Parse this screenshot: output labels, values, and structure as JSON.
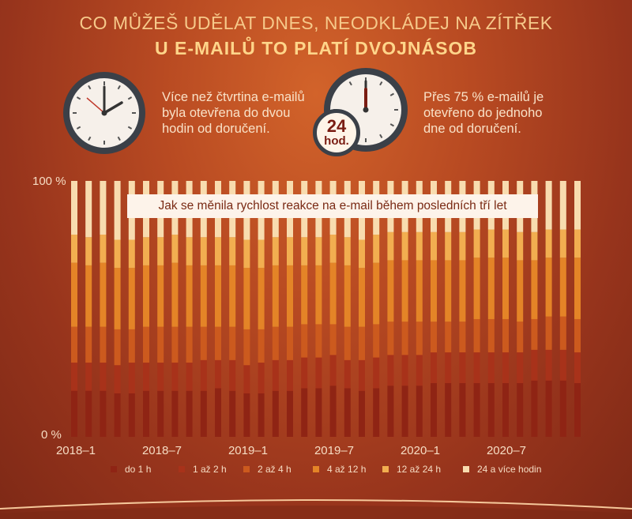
{
  "header": {
    "title_line1": "CO MŮŽEŠ UDĚLAT DNES, NEODKLÁDEJ NA ZÍTŘEK",
    "title_line2": "U E-MAILŮ TO PLATÍ DVOJNÁSOB"
  },
  "facts": [
    {
      "text_lines": [
        "Více než čtvrtina e-mailů",
        "byla otevřena do dvou",
        "hodin od doručení."
      ],
      "icon": "clock-icon"
    },
    {
      "text_lines": [
        "Přes 75 % e-mailů je",
        "otevřeno do jednoho",
        "dne od doručení."
      ],
      "icon": "clock-24h-icon",
      "badge_number": "24",
      "badge_unit": "hod."
    }
  ],
  "colors": {
    "do_1h": "#8f2414",
    "1_2h": "#a8321a",
    "2_4h": "#cc5a1e",
    "4_12h": "#e48427",
    "12_24h": "#f2ae50",
    "24plus": "#f8dcaf"
  },
  "chart_data": {
    "type": "bar",
    "stacked": true,
    "normalized": true,
    "title": "Jak se měnila rychlost reakce na e-mail během posledních tří let",
    "ylim": [
      0,
      100
    ],
    "yticks": [
      "0 %",
      "100 %"
    ],
    "x": [
      "2018–1",
      "2018–2",
      "2018–3",
      "2018–4",
      "2018–5",
      "2018–6",
      "2018–7",
      "2018–8",
      "2018–9",
      "2018–10",
      "2018–11",
      "2018–12",
      "2019–1",
      "2019–2",
      "2019–3",
      "2019–4",
      "2019–5",
      "2019–6",
      "2019–7",
      "2019–8",
      "2019–9",
      "2019–10",
      "2019–11",
      "2019–12",
      "2020–1",
      "2020–2",
      "2020–3",
      "2020–4",
      "2020–5",
      "2020–6",
      "2020–7",
      "2020–8",
      "2020–9",
      "2020–10",
      "2020–11",
      "2020–12"
    ],
    "xtick_labels": [
      "2018–1",
      "2018–7",
      "2019–1",
      "2019–7",
      "2020–1",
      "2020–7"
    ],
    "series": [
      {
        "name": "do 1 h",
        "values": [
          18,
          18,
          18,
          17,
          17,
          18,
          18,
          18,
          18,
          18,
          19,
          18,
          17,
          17,
          18,
          18,
          19,
          19,
          20,
          19,
          18,
          19,
          20,
          20,
          20,
          21,
          21,
          21,
          21,
          21,
          21,
          21,
          22,
          22,
          22,
          21
        ]
      },
      {
        "name": "1 až 2 h",
        "values": [
          11,
          11,
          11,
          11,
          12,
          11,
          11,
          11,
          11,
          12,
          11,
          12,
          11,
          12,
          12,
          12,
          12,
          12,
          12,
          11,
          12,
          12,
          12,
          12,
          12,
          12,
          12,
          12,
          12,
          12,
          12,
          12,
          12,
          12,
          12,
          12
        ]
      },
      {
        "name": "2 až 4 h",
        "values": [
          14,
          14,
          14,
          14,
          13,
          14,
          14,
          14,
          14,
          13,
          13,
          13,
          14,
          13,
          13,
          13,
          13,
          13,
          12,
          13,
          13,
          13,
          13,
          13,
          13,
          12,
          12,
          12,
          13,
          13,
          13,
          12,
          12,
          13,
          13,
          13
        ]
      },
      {
        "name": "4 až 12 h",
        "values": [
          25,
          24,
          25,
          24,
          24,
          24,
          24,
          25,
          24,
          24,
          24,
          24,
          24,
          24,
          24,
          24,
          23,
          23,
          24,
          24,
          23,
          24,
          24,
          24,
          24,
          24,
          24,
          24,
          24,
          24,
          24,
          24,
          23,
          23,
          23,
          24
        ]
      },
      {
        "name": "12 až 24 h",
        "values": [
          11,
          11,
          11,
          11,
          11,
          11,
          11,
          11,
          11,
          11,
          11,
          11,
          11,
          11,
          11,
          11,
          11,
          11,
          11,
          11,
          11,
          11,
          11,
          11,
          11,
          11,
          11,
          11,
          11,
          11,
          11,
          11,
          11,
          11,
          11,
          11
        ]
      },
      {
        "name": "24 a více hodin",
        "values": [
          21,
          22,
          21,
          23,
          23,
          22,
          22,
          21,
          22,
          22,
          22,
          22,
          23,
          23,
          22,
          22,
          22,
          22,
          21,
          22,
          23,
          21,
          20,
          20,
          20,
          20,
          20,
          20,
          19,
          19,
          19,
          20,
          20,
          19,
          19,
          19
        ]
      }
    ],
    "legend_position": "bottom",
    "grid": false
  }
}
